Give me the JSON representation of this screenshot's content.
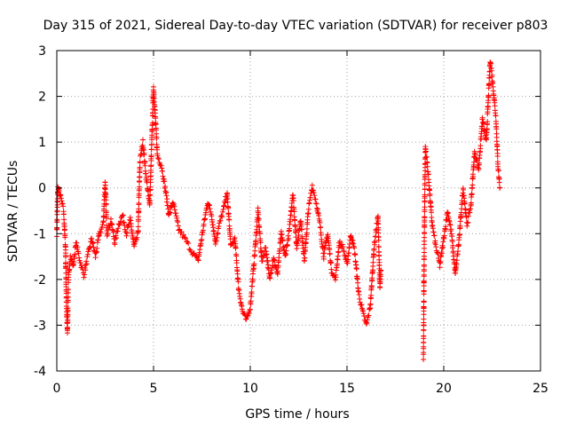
{
  "chart_data": {
    "type": "scatter",
    "title": "Day 315 of 2021, Sidereal Day-to-day VTEC variation (SDTVAR) for receiver p803",
    "xlabel": "GPS time / hours",
    "ylabel": "SDTVAR / TECUs",
    "xlim": [
      0,
      25
    ],
    "ylim": [
      -4,
      3
    ],
    "xticks": [
      0,
      5,
      10,
      15,
      20,
      25
    ],
    "yticks": [
      -4,
      -3,
      -2,
      -1,
      0,
      1,
      2,
      3
    ],
    "grid": true,
    "marker": "+",
    "series": [
      {
        "name": "SDTVAR",
        "color": "#ff0000",
        "anchors": [
          [
            0.0,
            -1.0
          ],
          [
            0.05,
            0.0
          ],
          [
            0.2,
            -0.2
          ],
          [
            0.35,
            -0.5
          ],
          [
            0.45,
            -1.3
          ],
          [
            0.5,
            -2.6
          ],
          [
            0.55,
            -3.15
          ],
          [
            0.6,
            -2.0
          ],
          [
            0.7,
            -1.5
          ],
          [
            0.85,
            -1.7
          ],
          [
            1.0,
            -1.2
          ],
          [
            1.2,
            -1.6
          ],
          [
            1.4,
            -1.9
          ],
          [
            1.6,
            -1.5
          ],
          [
            1.8,
            -1.1
          ],
          [
            2.0,
            -1.5
          ],
          [
            2.2,
            -1.0
          ],
          [
            2.4,
            -0.8
          ],
          [
            2.5,
            0.15
          ],
          [
            2.6,
            -1.0
          ],
          [
            2.8,
            -0.7
          ],
          [
            3.0,
            -1.2
          ],
          [
            3.2,
            -0.8
          ],
          [
            3.4,
            -0.6
          ],
          [
            3.6,
            -1.0
          ],
          [
            3.8,
            -0.7
          ],
          [
            4.0,
            -1.3
          ],
          [
            4.2,
            -1.0
          ],
          [
            4.3,
            0.6
          ],
          [
            4.45,
            1.0
          ],
          [
            4.6,
            0.3
          ],
          [
            4.8,
            -0.4
          ],
          [
            5.0,
            2.2
          ],
          [
            5.1,
            1.5
          ],
          [
            5.2,
            0.7
          ],
          [
            5.4,
            0.5
          ],
          [
            5.6,
            0.0
          ],
          [
            5.8,
            -0.6
          ],
          [
            6.0,
            -0.3
          ],
          [
            6.3,
            -0.9
          ],
          [
            6.6,
            -1.1
          ],
          [
            7.0,
            -1.4
          ],
          [
            7.3,
            -1.6
          ],
          [
            7.6,
            -0.8
          ],
          [
            7.8,
            -0.3
          ],
          [
            8.0,
            -0.6
          ],
          [
            8.2,
            -1.2
          ],
          [
            8.4,
            -0.8
          ],
          [
            8.6,
            -0.5
          ],
          [
            8.8,
            -0.1
          ],
          [
            9.0,
            -1.3
          ],
          [
            9.2,
            -1.1
          ],
          [
            9.4,
            -2.2
          ],
          [
            9.6,
            -2.7
          ],
          [
            9.8,
            -2.9
          ],
          [
            10.0,
            -2.6
          ],
          [
            10.2,
            -1.6
          ],
          [
            10.4,
            -0.5
          ],
          [
            10.6,
            -1.6
          ],
          [
            10.8,
            -1.3
          ],
          [
            11.0,
            -2.0
          ],
          [
            11.2,
            -1.5
          ],
          [
            11.4,
            -1.9
          ],
          [
            11.6,
            -1.0
          ],
          [
            11.8,
            -1.5
          ],
          [
            12.0,
            -1.0
          ],
          [
            12.2,
            -0.1
          ],
          [
            12.4,
            -1.3
          ],
          [
            12.6,
            -0.7
          ],
          [
            12.8,
            -1.6
          ],
          [
            13.0,
            -0.5
          ],
          [
            13.2,
            0.05
          ],
          [
            13.4,
            -0.3
          ],
          [
            13.6,
            -0.8
          ],
          [
            13.8,
            -1.5
          ],
          [
            14.0,
            -1.0
          ],
          [
            14.2,
            -1.8
          ],
          [
            14.4,
            -2.0
          ],
          [
            14.6,
            -1.2
          ],
          [
            14.8,
            -1.3
          ],
          [
            15.0,
            -1.7
          ],
          [
            15.2,
            -1.0
          ],
          [
            15.4,
            -1.4
          ],
          [
            15.6,
            -2.3
          ],
          [
            15.8,
            -2.7
          ],
          [
            16.0,
            -3.0
          ],
          [
            16.2,
            -2.6
          ],
          [
            16.4,
            -1.3
          ],
          [
            16.6,
            -0.6
          ],
          [
            16.7,
            -2.2
          ],
          [
            16.75,
            -1.8
          ],
          [
            18.95,
            -3.7
          ],
          [
            19.0,
            -0.8
          ],
          [
            19.05,
            0.9
          ],
          [
            19.2,
            0.3
          ],
          [
            19.4,
            -0.8
          ],
          [
            19.6,
            -1.3
          ],
          [
            19.8,
            -1.7
          ],
          [
            20.0,
            -1.1
          ],
          [
            20.2,
            -0.5
          ],
          [
            20.4,
            -1.0
          ],
          [
            20.6,
            -1.9
          ],
          [
            20.8,
            -1.1
          ],
          [
            21.0,
            0.0
          ],
          [
            21.2,
            -0.8
          ],
          [
            21.4,
            -0.4
          ],
          [
            21.6,
            0.8
          ],
          [
            21.8,
            0.4
          ],
          [
            22.0,
            1.5
          ],
          [
            22.2,
            1.0
          ],
          [
            22.4,
            2.8
          ],
          [
            22.6,
            2.0
          ],
          [
            22.7,
            1.5
          ],
          [
            22.8,
            0.5
          ],
          [
            22.9,
            0.0
          ]
        ]
      }
    ]
  }
}
